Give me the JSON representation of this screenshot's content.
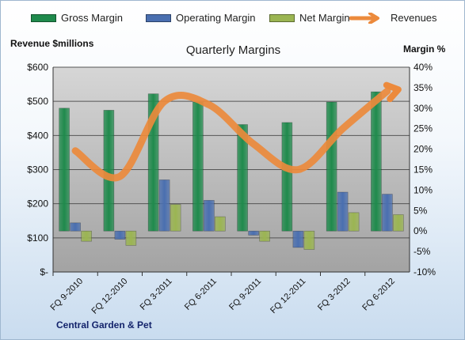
{
  "legend": [
    {
      "label": "Gross Margin",
      "color": "#1f8a4c"
    },
    {
      "label": "Operating Margin",
      "color": "#4a6fb0"
    },
    {
      "label": "Net Margin",
      "color": "#9bb552"
    },
    {
      "label": "Revenues",
      "color": "#ec8a3c"
    }
  ],
  "chart_data": {
    "type": "bar",
    "title": "Quarterly Margins",
    "categories": [
      "FQ 9-2010",
      "FQ 12-2010",
      "FQ 3-2011",
      "FQ 6-2011",
      "FQ 9-2011",
      "FQ 12-2011",
      "FQ 3-2012",
      "FQ 6-2012"
    ],
    "series": [
      {
        "name": "Gross Margin",
        "axis": "right",
        "values": [
          30.0,
          29.5,
          33.5,
          31.5,
          26.0,
          26.5,
          31.5,
          34.0
        ],
        "color": "#1f8a4c"
      },
      {
        "name": "Operating Margin",
        "axis": "right",
        "values": [
          2.0,
          -2.0,
          12.5,
          7.5,
          -1.0,
          -4.0,
          9.5,
          9.0
        ],
        "color": "#4a6fb0"
      },
      {
        "name": "Net Margin",
        "axis": "right",
        "values": [
          -2.5,
          -3.5,
          6.5,
          3.5,
          -2.5,
          -4.5,
          4.5,
          4.0
        ],
        "color": "#9bb552"
      },
      {
        "name": "Revenues",
        "type": "line",
        "axis": "left",
        "values": [
          355,
          280,
          500,
          490,
          375,
          300,
          420,
          530
        ],
        "color": "#ec8a3c"
      }
    ],
    "ylabel_left": "Revenue $millions",
    "ylabel_right": "Margin %",
    "ylim_left": [
      0,
      600
    ],
    "ylim_right": [
      -10,
      40
    ],
    "yticks_left": [
      "$-",
      "$100",
      "$200",
      "$300",
      "$400",
      "$500",
      "$600"
    ],
    "yticks_right": [
      "-10%",
      "-5%",
      "0%",
      "5%",
      "10%",
      "15%",
      "20%",
      "25%",
      "30%",
      "35%",
      "40%"
    ],
    "legend_position": "top",
    "grid": true
  },
  "company": "Central Garden & Pet"
}
